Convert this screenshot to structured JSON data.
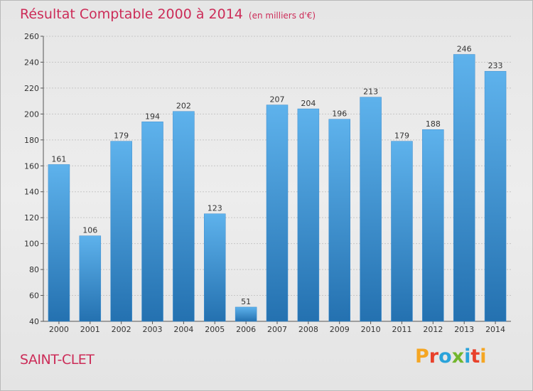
{
  "chart_data": {
    "type": "bar",
    "title": "Résultat Comptable 2000 à 2014",
    "unit": "(en milliers d'€)",
    "categories": [
      "2000",
      "2001",
      "2002",
      "2003",
      "2004",
      "2005",
      "2006",
      "2007",
      "2008",
      "2009",
      "2010",
      "2011",
      "2012",
      "2013",
      "2014"
    ],
    "values": [
      161,
      106,
      179,
      194,
      202,
      123,
      51,
      207,
      204,
      196,
      213,
      179,
      188,
      246,
      233
    ],
    "ylim": [
      40,
      260
    ],
    "yticks": [
      40,
      60,
      80,
      100,
      120,
      140,
      160,
      180,
      200,
      220,
      240,
      260
    ],
    "grid": true,
    "bar_color_top": "#5eb2ec",
    "bar_color_bottom": "#2471b0"
  },
  "footer": {
    "city": "SAINT-CLET",
    "brand": "Proxiti"
  },
  "colors": {
    "title": "#cc2c58",
    "brand_letters": [
      "#f5a623",
      "#e8412b",
      "#2aa3da",
      "#72b62e",
      "#2aa3da",
      "#e8412b",
      "#f5a623"
    ]
  }
}
